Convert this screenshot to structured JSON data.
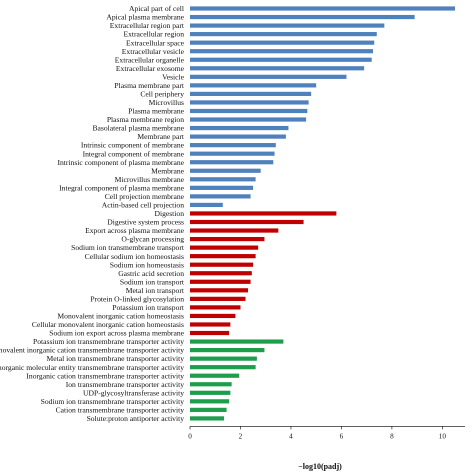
{
  "chart_data": {
    "type": "bar",
    "orientation": "horizontal",
    "xlabel": "−log10(padj)",
    "ylabel": "",
    "xlim": [
      0,
      10.5
    ],
    "xticks": [
      "0",
      "2",
      "4",
      "6",
      "8",
      "10"
    ],
    "grid": false,
    "series": [
      {
        "color": "#4f81bd",
        "categories": [
          "Apical part of cell",
          "Apical plasma membrane",
          "Extracellular region part",
          "Extracellular region",
          "Extracellular space",
          "Extracellular vesicle",
          "Extracellular organelle",
          "Extracellular exosome",
          "Vesicle",
          "Plasma membrane part",
          "Cell periphery",
          "Microvillus",
          "Plasma membrane",
          "Plasma membrane region",
          "Basolateral plasma membrane",
          "Membrane part",
          "Intrinsic component of membrane",
          "Integral component of membrane",
          "Intrinsic component of plasma membrane",
          "Membrane",
          "Microvillus membrane",
          "Integral component of plasma membrane",
          "Cell projection membrane",
          "Actin-based cell projection"
        ],
        "values": [
          10.5,
          8.9,
          7.7,
          7.4,
          7.3,
          7.25,
          7.2,
          6.9,
          6.2,
          5.0,
          4.8,
          4.7,
          4.65,
          4.6,
          3.9,
          3.8,
          3.4,
          3.35,
          3.3,
          2.8,
          2.6,
          2.5,
          2.4,
          1.3
        ]
      },
      {
        "color": "#c00000",
        "categories": [
          "Digestion",
          "Digestive system process",
          "Export across plasma membrane",
          "O-glycan processing",
          "Sodium ion transmembrane transport",
          "Cellular sodium ion homeostasis",
          "Sodium ion homeostasis",
          "Gastric acid secretion",
          "Sodium ion transport",
          "Metal ion transport",
          "Protein O-linked glycosylation",
          "Potassium ion transport",
          "Monovalent inorganic cation homeostasis",
          "Cellular monovalent inorganic cation homeostasis",
          "Sodium ion export across plasma membrane"
        ],
        "values": [
          5.8,
          4.5,
          3.5,
          2.95,
          2.7,
          2.6,
          2.5,
          2.45,
          2.4,
          2.3,
          2.2,
          2.0,
          1.8,
          1.6,
          1.55
        ]
      },
      {
        "color": "#1e9e4a",
        "categories": [
          "Potassium ion transmembrane transporter activity",
          "Monovalent inorganic cation transmembrane transporter activity",
          "Metal ion transmembrane transporter activity",
          "Inorganic molecular entity transmembrane transporter activity",
          "Inorganic cation transmembrane transporter activity",
          "Ion transmembrane transporter activity",
          "UDP-glycosyltransferase activity",
          "Sodium ion transmembrane transporter activity",
          "Cation transmembrane transporter activity",
          "Solute:proton antiporter activity"
        ],
        "values": [
          3.7,
          2.95,
          2.65,
          2.6,
          1.95,
          1.65,
          1.6,
          1.55,
          1.45,
          1.35
        ]
      }
    ]
  }
}
